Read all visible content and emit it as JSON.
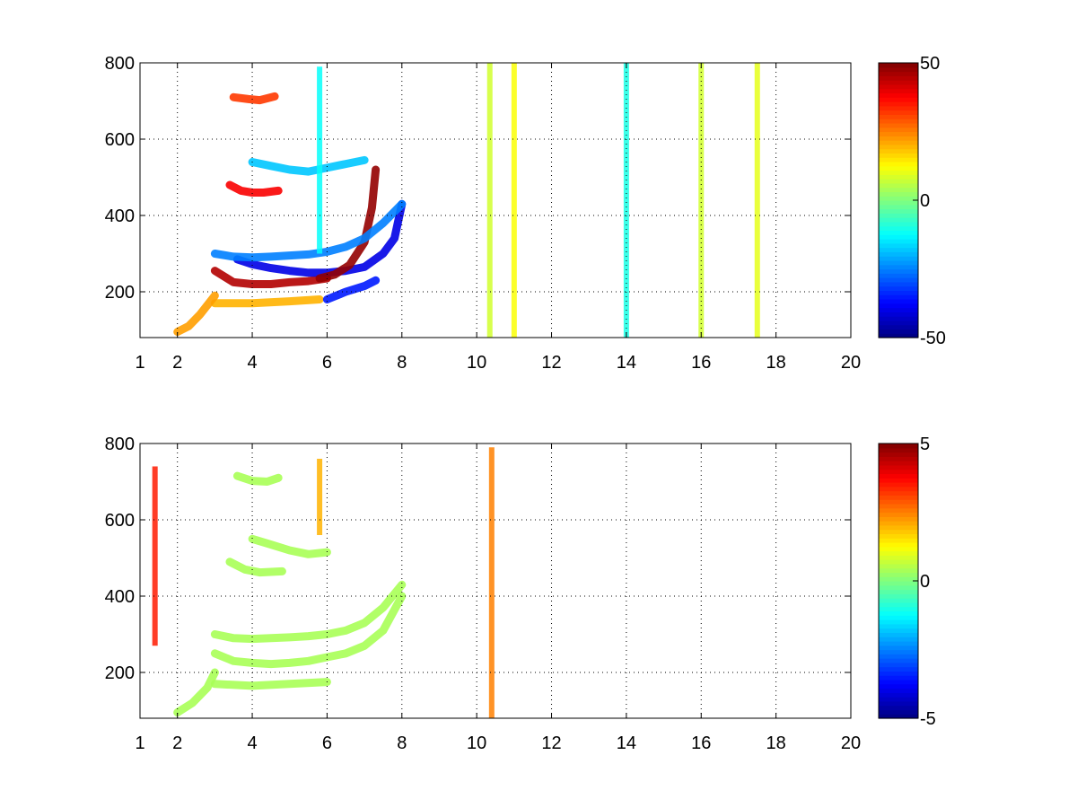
{
  "figure": {
    "background": "#ffffff",
    "colormap": "jet"
  },
  "chart_data": [
    {
      "type": "heatmap",
      "title": "",
      "xlabel": "",
      "ylabel": "",
      "xlim": [
        1,
        20
      ],
      "ylim": [
        80,
        800
      ],
      "xticks": [
        1,
        2,
        4,
        6,
        8,
        10,
        12,
        14,
        16,
        18,
        20
      ],
      "yticks": [
        200,
        400,
        600,
        800
      ],
      "grid": true,
      "colorbar": {
        "limits": [
          -50,
          50
        ],
        "ticks": [
          -50,
          0,
          50
        ],
        "placement": "right"
      },
      "features": [
        {
          "kind": "curve",
          "value": 45,
          "x": [
            3.0,
            3.5,
            4.0,
            4.5,
            5.0,
            5.5,
            6.0
          ],
          "y": [
            255,
            225,
            220,
            220,
            225,
            228,
            235
          ]
        },
        {
          "kind": "curve",
          "value": -40,
          "x": [
            3.6,
            4.0,
            4.5,
            5.0,
            5.5,
            6.0,
            6.5,
            7.0,
            7.5,
            7.8,
            8.0
          ],
          "y": [
            285,
            272,
            262,
            255,
            250,
            250,
            255,
            265,
            300,
            340,
            430
          ]
        },
        {
          "kind": "curve",
          "value": 48,
          "x": [
            5.8,
            6.2,
            6.6,
            7.0,
            7.2,
            7.3
          ],
          "y": [
            235,
            245,
            270,
            330,
            420,
            520
          ]
        },
        {
          "kind": "curve",
          "value": -25,
          "x": [
            3.0,
            3.5,
            4.0,
            4.5,
            5.0,
            5.5,
            6.0,
            6.5,
            7.0,
            7.5,
            8.0
          ],
          "y": [
            300,
            292,
            290,
            292,
            295,
            298,
            305,
            318,
            340,
            380,
            430
          ]
        },
        {
          "kind": "curve",
          "value": 20,
          "x": [
            3.0,
            4.0,
            5.0,
            5.8
          ],
          "y": [
            170,
            170,
            175,
            180
          ]
        },
        {
          "kind": "curve",
          "value": -35,
          "x": [
            6.0,
            6.5,
            7.0,
            7.3
          ],
          "y": [
            180,
            200,
            215,
            230
          ]
        },
        {
          "kind": "curve",
          "value": 22,
          "x": [
            2.0,
            2.3,
            2.6,
            3.0
          ],
          "y": [
            95,
            110,
            140,
            190
          ]
        },
        {
          "kind": "curve",
          "value": 38,
          "x": [
            3.4,
            3.7,
            4.0,
            4.3,
            4.7
          ],
          "y": [
            480,
            465,
            460,
            460,
            465
          ]
        },
        {
          "kind": "curve",
          "value": -18,
          "x": [
            4.0,
            4.5,
            5.0,
            5.5,
            6.0,
            6.5,
            7.0
          ],
          "y": [
            540,
            530,
            520,
            515,
            525,
            535,
            545
          ]
        },
        {
          "kind": "curve",
          "value": 32,
          "x": [
            3.5,
            3.9,
            4.2,
            4.6
          ],
          "y": [
            710,
            705,
            702,
            712
          ]
        },
        {
          "kind": "column",
          "value": 8,
          "x": 10.35,
          "y": [
            80,
            800
          ]
        },
        {
          "kind": "column",
          "value": 12,
          "x": 11.0,
          "y": [
            80,
            800
          ]
        },
        {
          "kind": "column",
          "value": -12,
          "x": 5.8,
          "y": [
            300,
            790
          ]
        },
        {
          "kind": "column",
          "value": -10,
          "x": 14.0,
          "y": [
            80,
            800
          ]
        },
        {
          "kind": "column",
          "value": 8,
          "x": 16.0,
          "y": [
            80,
            800
          ]
        },
        {
          "kind": "column",
          "value": 10,
          "x": 17.5,
          "y": [
            80,
            800
          ]
        }
      ]
    },
    {
      "type": "heatmap",
      "title": "",
      "xlabel": "",
      "ylabel": "",
      "xlim": [
        1,
        20
      ],
      "ylim": [
        80,
        800
      ],
      "xticks": [
        1,
        2,
        4,
        6,
        8,
        10,
        12,
        14,
        16,
        18,
        20
      ],
      "yticks": [
        200,
        400,
        600,
        800
      ],
      "grid": true,
      "colorbar": {
        "limits": [
          -5,
          5
        ],
        "ticks": [
          -5,
          0,
          5
        ],
        "placement": "right"
      },
      "features": [
        {
          "kind": "curve",
          "value": 0.4,
          "x": [
            3.0,
            3.5,
            4.0,
            4.5,
            5.0,
            5.5,
            6.0,
            6.5,
            7.0,
            7.5,
            8.0
          ],
          "y": [
            250,
            230,
            225,
            222,
            225,
            230,
            240,
            250,
            270,
            310,
            400
          ]
        },
        {
          "kind": "curve",
          "value": 0.4,
          "x": [
            3.0,
            4.0,
            5.0,
            6.0
          ],
          "y": [
            170,
            165,
            170,
            175
          ]
        },
        {
          "kind": "curve",
          "value": 0.4,
          "x": [
            2.0,
            2.4,
            2.8,
            3.0
          ],
          "y": [
            95,
            120,
            160,
            200
          ]
        },
        {
          "kind": "curve",
          "value": 0.4,
          "x": [
            3.0,
            3.5,
            4.0,
            4.5,
            5.0,
            5.5,
            6.0,
            6.5,
            7.0,
            7.5,
            8.0
          ],
          "y": [
            300,
            290,
            288,
            290,
            292,
            295,
            300,
            310,
            330,
            370,
            430
          ]
        },
        {
          "kind": "curve",
          "value": 0.4,
          "x": [
            3.4,
            3.8,
            4.2,
            4.8
          ],
          "y": [
            490,
            470,
            462,
            465
          ]
        },
        {
          "kind": "curve",
          "value": 0.4,
          "x": [
            4.0,
            4.5,
            5.0,
            5.5,
            6.0
          ],
          "y": [
            550,
            535,
            520,
            510,
            515
          ]
        },
        {
          "kind": "curve",
          "value": 0.4,
          "x": [
            3.6,
            4.0,
            4.4,
            4.7
          ],
          "y": [
            715,
            702,
            700,
            710
          ]
        },
        {
          "kind": "column",
          "value": 2.5,
          "x": 10.4,
          "y": [
            80,
            790
          ]
        },
        {
          "kind": "column",
          "value": 3.5,
          "x": 1.4,
          "y": [
            270,
            740
          ]
        },
        {
          "kind": "column",
          "value": 2.0,
          "x": 5.8,
          "y": [
            560,
            760
          ]
        }
      ]
    }
  ]
}
